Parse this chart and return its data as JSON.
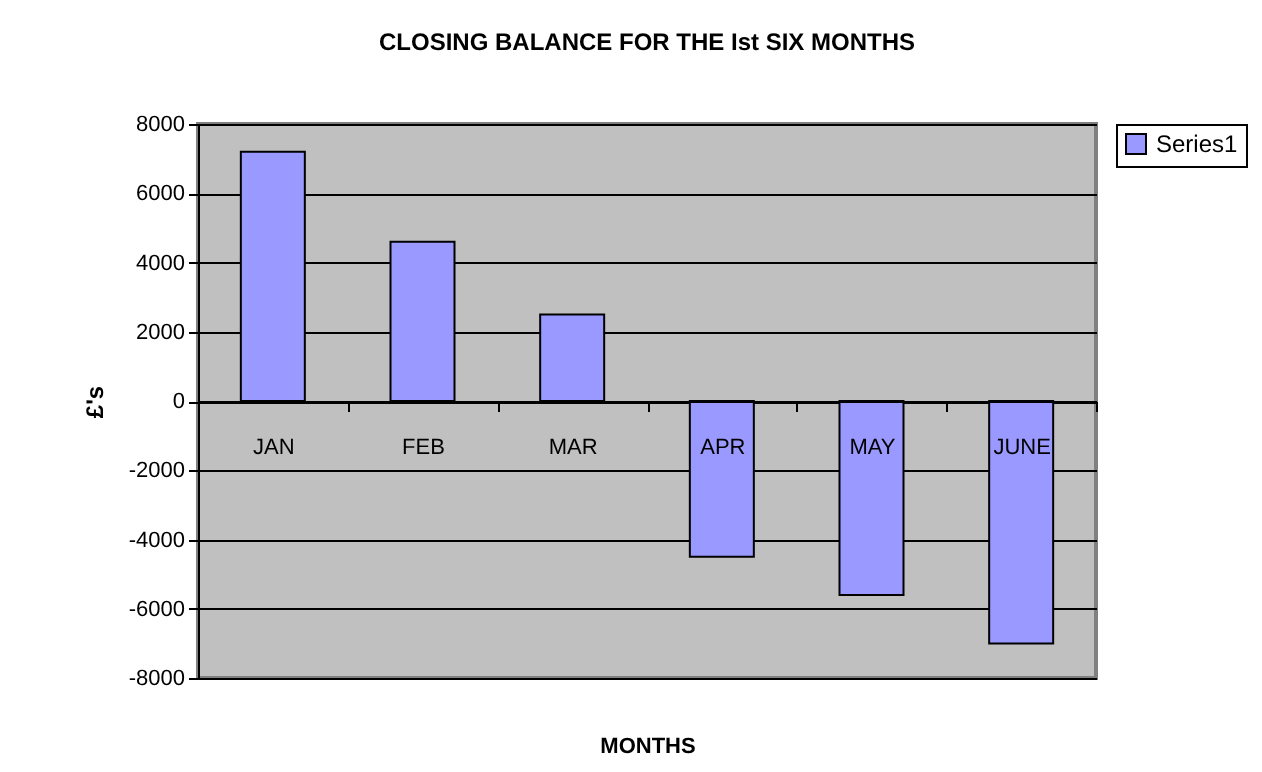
{
  "chart_data": {
    "type": "bar",
    "title": "CLOSING BALANCE FOR THE Ist SIX MONTHS",
    "xlabel": "MONTHS",
    "ylabel": "£'s",
    "categories": [
      "JAN",
      "FEB",
      "MAR",
      "APR",
      "MAY",
      "JUNE"
    ],
    "series": [
      {
        "name": "Series1",
        "color": "#9999ff",
        "values": [
          7200,
          4600,
          2500,
          -4500,
          -5600,
          -7000
        ]
      }
    ],
    "ylim": [
      -8000,
      8000
    ],
    "yticks": [
      -8000,
      -6000,
      -4000,
      -2000,
      0,
      2000,
      4000,
      6000,
      8000
    ],
    "grid": "y",
    "legend": "right"
  }
}
